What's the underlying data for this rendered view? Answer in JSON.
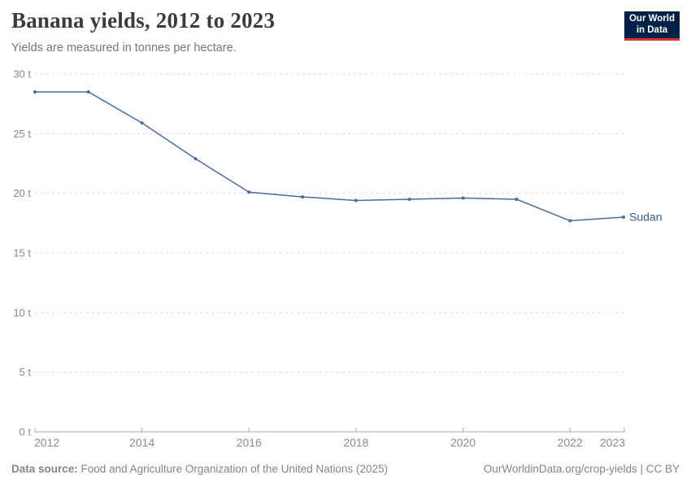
{
  "header": {
    "title": "Banana yields, 2012 to 2023",
    "subtitle": "Yields are measured in tonnes per hectare.",
    "logo": {
      "line1": "Our World",
      "line2": "in Data",
      "bg_color": "#002147",
      "bar_color": "#d8352e",
      "text_color": "#ffffff"
    }
  },
  "chart_data": {
    "type": "line",
    "title": "Banana yields, 2012 to 2023",
    "subtitle": "Yields are measured in tonnes per hectare.",
    "unit": "tonnes per hectare",
    "x": [
      2012,
      2013,
      2014,
      2015,
      2016,
      2017,
      2018,
      2019,
      2020,
      2021,
      2022,
      2023
    ],
    "series": [
      {
        "name": "Sudan",
        "color": "#4C6A9C",
        "label_color": "#3b5c8f",
        "values": [
          28.5,
          28.5,
          25.9,
          22.9,
          20.1,
          19.7,
          19.4,
          19.5,
          19.6,
          19.5,
          17.7,
          18.0
        ]
      }
    ],
    "xlabel": "",
    "ylabel": "",
    "ylim": [
      0,
      30
    ],
    "xlim": [
      2012,
      2023
    ],
    "yticks": {
      "values": [
        0,
        5,
        10,
        15,
        20,
        25,
        30
      ],
      "labels": [
        "0 t",
        "5 t",
        "10 t",
        "15 t",
        "20 t",
        "25 t",
        "30 t"
      ]
    },
    "xticks": {
      "values": [
        2012,
        2014,
        2016,
        2018,
        2020,
        2022,
        2023
      ],
      "labels": [
        "2012",
        "2014",
        "2016",
        "2018",
        "2020",
        "2022",
        "2023"
      ]
    },
    "grid": "horizontal-dashed",
    "grid_color": "#dcdcdc",
    "axis_color": "#a8a8a8",
    "tick_label_color": "#8a8a8a",
    "legend_position": "end-of-line-label"
  },
  "footer": {
    "source_label": "Data source:",
    "source_text": "Food and Agriculture Organization of the United Nations (2025)",
    "link_text": "OurWorldinData.org/crop-yields | CC BY"
  }
}
